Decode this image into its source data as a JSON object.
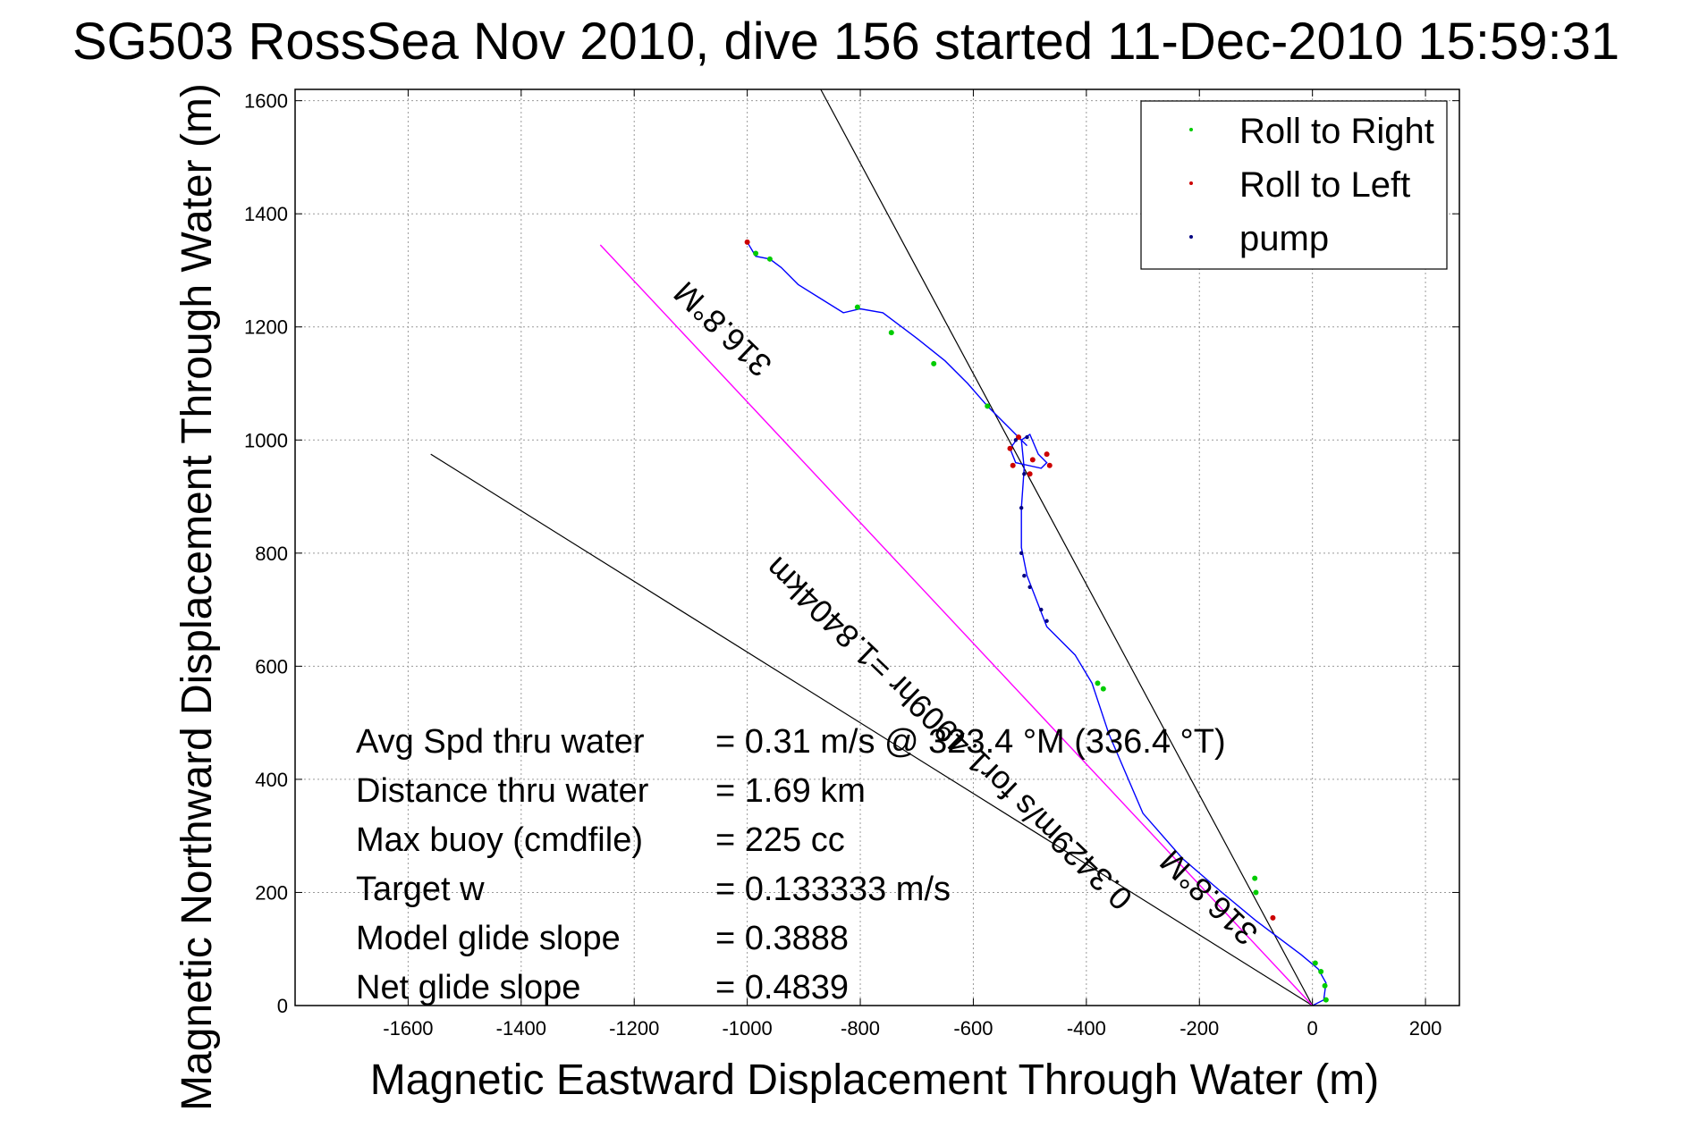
{
  "chart_data": {
    "type": "line",
    "title": "SG503 RossSea Nov 2010, dive 156 started 11-Dec-2010 15:59:31",
    "xlabel": "Magnetic Eastward Displacement Through Water (m)",
    "ylabel": "Magnetic Northward Displacement Through Water (m)",
    "xlim": [
      -1800,
      260
    ],
    "ylim": [
      0,
      1620
    ],
    "xticks": [
      -1600,
      -1400,
      -1200,
      -1000,
      -800,
      -600,
      -400,
      -200,
      0,
      200
    ],
    "yticks": [
      0,
      200,
      400,
      600,
      800,
      1000,
      1200,
      1400,
      1600
    ],
    "xtick_labels": [
      "-1600",
      "-1400",
      "-1200",
      "-1000",
      "-800",
      "-600",
      "-400",
      "-200",
      "0",
      "200"
    ],
    "ytick_labels": [
      "0",
      "200",
      "400",
      "600",
      "800",
      "1000",
      "1200",
      "1400",
      "1600"
    ],
    "grid": true,
    "legend_position": "top-right",
    "legend": [
      {
        "label": "Roll to Right",
        "color": "#00cc00"
      },
      {
        "label": "Roll to Left",
        "color": "#cc0000"
      },
      {
        "label": "pump",
        "color": "#000080"
      }
    ],
    "colors": {
      "track": "#0000ff",
      "roll_right": "#00cc00",
      "roll_left": "#cc0000",
      "pump": "#000080",
      "heading_line": "#ff00ff",
      "reference_lines": "#000000"
    },
    "track": {
      "x": [
        0,
        20,
        24,
        10,
        -20,
        -60,
        -100,
        -160,
        -230,
        -300,
        -360,
        -390,
        -420,
        -470,
        -505,
        -515,
        -515,
        -510,
        -515,
        -500,
        -485,
        -470,
        -480,
        -525,
        -535,
        -520,
        -505,
        -540,
        -575,
        -610,
        -650,
        -700,
        -760,
        -800,
        -830,
        -870,
        -910,
        -940,
        -960,
        -985,
        -1000
      ],
      "y": [
        0,
        10,
        40,
        65,
        90,
        120,
        150,
        200,
        260,
        340,
        480,
        570,
        620,
        670,
        760,
        810,
        880,
        950,
        1000,
        1010,
        975,
        960,
        950,
        960,
        985,
        1005,
        990,
        1025,
        1060,
        1100,
        1140,
        1180,
        1225,
        1232,
        1225,
        1250,
        1275,
        1305,
        1320,
        1325,
        1350
      ]
    },
    "roll_right_points": {
      "x": [
        24,
        22,
        15,
        5,
        -100,
        -102,
        -380,
        -370,
        -575,
        -670,
        -745,
        -805,
        -960,
        -985
      ],
      "y": [
        10,
        35,
        60,
        75,
        200,
        225,
        570,
        560,
        1060,
        1135,
        1190,
        1235,
        1320,
        1330
      ]
    },
    "roll_left_points": {
      "x": [
        -520,
        -535,
        -530,
        -500,
        -465,
        -470,
        -495,
        -70,
        -1000
      ],
      "y": [
        1005,
        985,
        955,
        940,
        955,
        975,
        965,
        155,
        1350
      ]
    },
    "pump_points": {
      "x": [
        -505,
        -510,
        -515,
        -515,
        -510,
        -500,
        -480,
        -470,
        -525
      ],
      "y": [
        1005,
        940,
        880,
        800,
        760,
        740,
        700,
        680,
        1000
      ]
    },
    "heading_line": {
      "x": [
        0,
        -1260
      ],
      "y": [
        0,
        1345
      ]
    },
    "reference_lines": [
      {
        "x": [
          0,
          -870
        ],
        "y": [
          0,
          1620
        ]
      },
      {
        "x": [
          0,
          -1560
        ],
        "y": [
          0,
          975
        ]
      }
    ],
    "line_labels": [
      {
        "text": "316.8°M",
        "x": -1030,
        "y": 1210,
        "angle": 223.8
      },
      {
        "text": "0.3429m/s for1.4909hr =1.8404km",
        "x": -630,
        "y": 495,
        "angle": 223.8
      },
      {
        "text": "316.8°M",
        "x": -170,
        "y": 205,
        "angle": 223.8
      }
    ],
    "stats": [
      {
        "label": "Avg Spd thru water",
        "value": "=  0.31 m/s @ 323.4 °M (336.4 °T)"
      },
      {
        "label": "Distance thru water",
        "value": "=  1.69 km"
      },
      {
        "label": "Max buoy (cmdfile)",
        "value": "= 225 cc"
      },
      {
        "label": "Target w",
        "value": "= 0.133333 m/s"
      },
      {
        "label": "Model glide slope",
        "value": "= 0.3888"
      },
      {
        "label": "Net glide slope",
        "value": "= 0.4839"
      }
    ]
  }
}
